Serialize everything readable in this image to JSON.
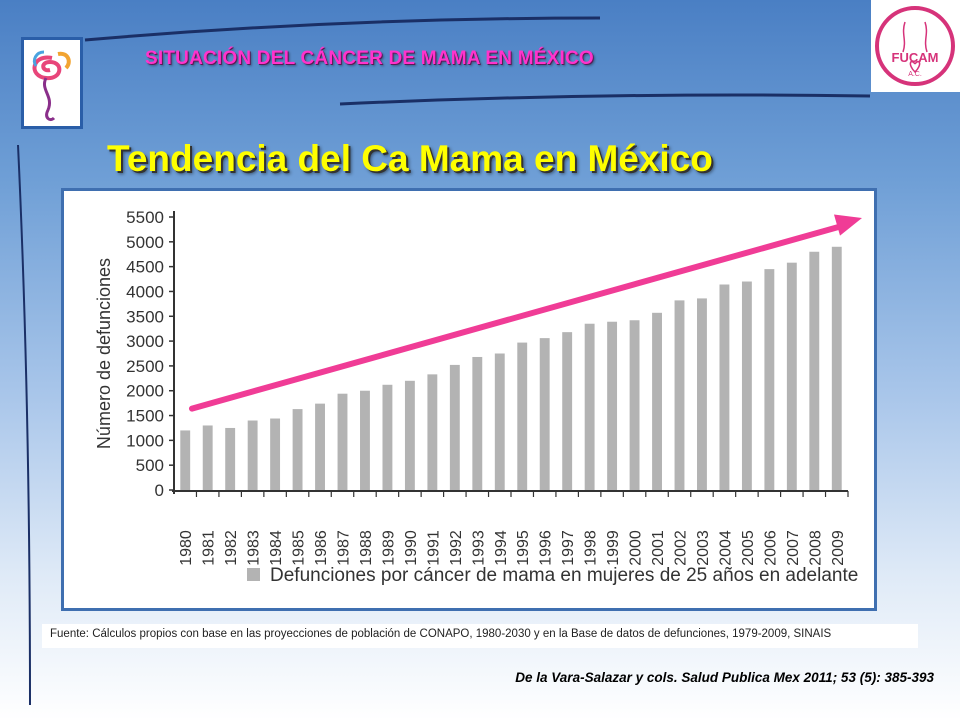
{
  "header": {
    "title": "SITUACIÓN  DEL CÁNCER DE MAMA EN MÉXICO",
    "logo_right_text": "FUCAM",
    "logo_right_sub": "A.C."
  },
  "slide": {
    "title": "Tendencia del Ca Mama en México"
  },
  "colors": {
    "bar": "#b3b3b3",
    "trend_arrow": "#f03c96",
    "header_text": "#ff33cc",
    "title_text": "#ffff00",
    "panel_border": "#3f6fb0"
  },
  "chart_data": {
    "type": "bar",
    "ylabel": "Número de defunciones",
    "xlabel": "",
    "ylim": [
      0,
      5500
    ],
    "yticks": [
      0,
      500,
      1000,
      1500,
      2000,
      2500,
      3000,
      3500,
      4000,
      4500,
      5000,
      5500
    ],
    "categories": [
      "1980",
      "1981",
      "1982",
      "1983",
      "1984",
      "1985",
      "1986",
      "1987",
      "1988",
      "1989",
      "1990",
      "1991",
      "1992",
      "1993",
      "1994",
      "1995",
      "1996",
      "1997",
      "1998",
      "1999",
      "2000",
      "2001",
      "2002",
      "2003",
      "2004",
      "2005",
      "2006",
      "2007",
      "2008",
      "2009"
    ],
    "series": [
      {
        "name": "Defunciones por cáncer de mama en mujeres de 25 años en adelante",
        "values": [
          1200,
          1300,
          1250,
          1400,
          1440,
          1630,
          1740,
          1940,
          2000,
          2120,
          2200,
          2330,
          2520,
          2680,
          2750,
          2970,
          3060,
          3180,
          3350,
          3390,
          3420,
          3570,
          3820,
          3860,
          4140,
          4200,
          4450,
          4580,
          4800,
          4900
        ]
      }
    ],
    "legend_position": "bottom",
    "grid": false,
    "annotation": "trend-arrow"
  },
  "footer": {
    "source": "Fuente: Cálculos propios con base en las proyecciones de población de CONAPO, 1980-2030 y en la Base de datos de defunciones, 1979-2009, SINAIS",
    "citation": "De la Vara-Salazar y cols. Salud Publica Mex 2011; 53 (5): 385-393"
  }
}
